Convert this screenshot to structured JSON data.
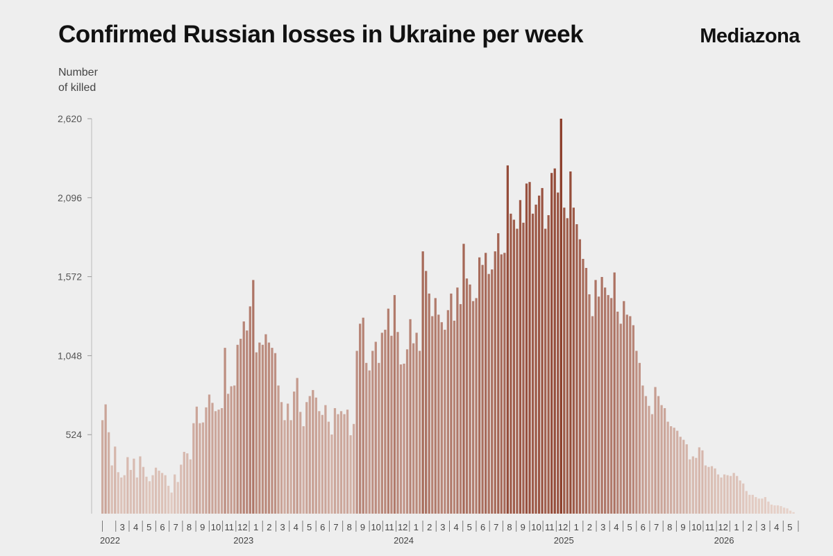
{
  "header": {
    "title": "Confirmed Russian losses in Ukraine per week",
    "brand": "Mediazona"
  },
  "colors": {
    "background": "#eeeeee",
    "bar_light": "#e8d5cd",
    "bar_dark": "#8a3a26"
  },
  "chart_data": {
    "type": "bar",
    "title": "Confirmed Russian losses in Ukraine per week",
    "ylabel_lines": [
      "Number",
      "of killed"
    ],
    "ylim": [
      0,
      2620
    ],
    "yticks": [
      524,
      1048,
      1572,
      2096,
      2620
    ],
    "ytick_labels": [
      "524",
      "1,048",
      "1,572",
      "2,096",
      "2,620"
    ],
    "grid": false,
    "x_month_labels": [
      "",
      "3",
      "4",
      "5",
      "6",
      "7",
      "8",
      "9",
      "10",
      "11",
      "12",
      "1",
      "2",
      "3",
      "4",
      "5",
      "6",
      "7",
      "8",
      "9",
      "10",
      "11",
      "12",
      "1",
      "2",
      "3",
      "4",
      "5",
      "6",
      "7",
      "8",
      "9",
      "10",
      "11",
      "12",
      "1",
      "2",
      "3",
      "4",
      "5",
      "6",
      "7",
      "8",
      "9",
      "10",
      "11",
      "12",
      "1",
      "2",
      "3",
      "4",
      "5"
    ],
    "x_year_labels": [
      {
        "label": "2022",
        "month_index": 0
      },
      {
        "label": "2023",
        "month_index": 10
      },
      {
        "label": "2024",
        "month_index": 22
      },
      {
        "label": "2025",
        "month_index": 34
      },
      {
        "label": "2026",
        "month_index": 46
      }
    ],
    "values": [
      620,
      725,
      540,
      320,
      445,
      275,
      240,
      255,
      375,
      290,
      365,
      240,
      380,
      310,
      245,
      215,
      255,
      305,
      285,
      270,
      255,
      185,
      140,
      260,
      210,
      325,
      410,
      400,
      360,
      600,
      710,
      600,
      605,
      705,
      790,
      735,
      680,
      690,
      700,
      1100,
      795,
      845,
      850,
      1120,
      1160,
      1275,
      1215,
      1375,
      1550,
      1070,
      1135,
      1120,
      1190,
      1135,
      1100,
      1065,
      850,
      740,
      620,
      730,
      620,
      810,
      900,
      675,
      580,
      740,
      780,
      820,
      770,
      680,
      655,
      720,
      610,
      525,
      700,
      660,
      680,
      660,
      690,
      520,
      595,
      1080,
      1260,
      1300,
      1000,
      950,
      1080,
      1140,
      1000,
      1200,
      1220,
      1360,
      1180,
      1450,
      1205,
      990,
      995,
      1090,
      1290,
      1130,
      1200,
      1080,
      1740,
      1610,
      1460,
      1310,
      1430,
      1320,
      1270,
      1220,
      1350,
      1460,
      1280,
      1500,
      1390,
      1790,
      1560,
      1520,
      1410,
      1430,
      1700,
      1650,
      1730,
      1590,
      1620,
      1740,
      1860,
      1720,
      1730,
      2310,
      1990,
      1950,
      1890,
      2080,
      1930,
      2190,
      2200,
      1990,
      2050,
      2110,
      2160,
      1890,
      1980,
      2260,
      2290,
      2130,
      2620,
      2030,
      1960,
      2270,
      2030,
      1920,
      1820,
      1690,
      1630,
      1455,
      1310,
      1550,
      1440,
      1570,
      1500,
      1450,
      1430,
      1600,
      1340,
      1260,
      1410,
      1320,
      1310,
      1250,
      1080,
      1000,
      850,
      780,
      715,
      660,
      840,
      780,
      720,
      700,
      610,
      580,
      570,
      550,
      510,
      490,
      460,
      360,
      380,
      370,
      440,
      420,
      320,
      310,
      315,
      300,
      260,
      240,
      260,
      255,
      250,
      270,
      250,
      220,
      200,
      150,
      125,
      125,
      110,
      100,
      100,
      110,
      80,
      60,
      55,
      55,
      50,
      40,
      35,
      20,
      10
    ]
  }
}
